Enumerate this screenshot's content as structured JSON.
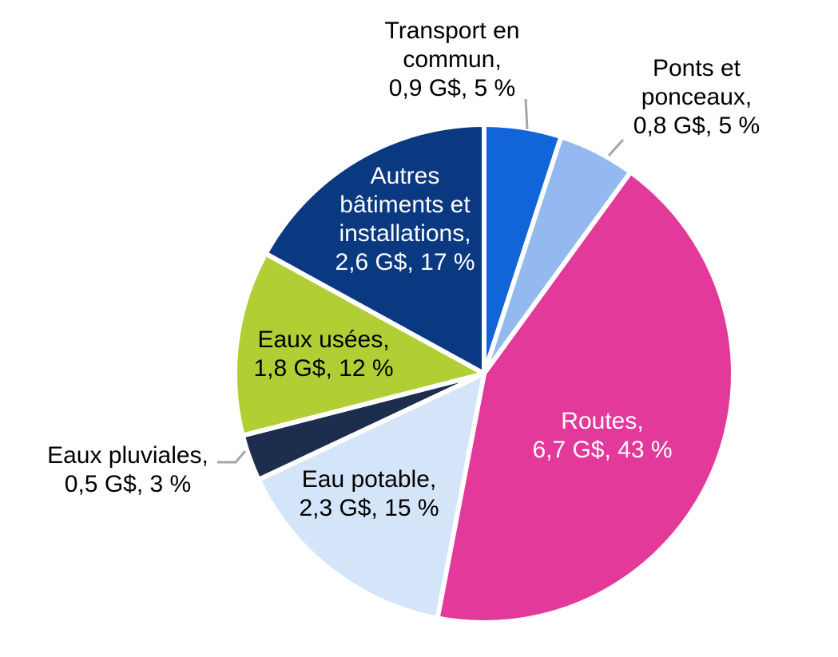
{
  "chart_data": {
    "type": "pie",
    "slices": [
      {
        "name": "Transport en commun",
        "value": 0.9,
        "percent": 5,
        "color": "#1264d9",
        "text_color": "#000000",
        "label": [
          "Transport en",
          "commun,",
          "0,9 G$, 5 %"
        ]
      },
      {
        "name": "Ponts et ponceaux",
        "value": 0.8,
        "percent": 5,
        "color": "#94b9f0",
        "text_color": "#000000",
        "label": [
          "Ponts et",
          "ponceaux,",
          "0,8 G$, 5 %"
        ]
      },
      {
        "name": "Routes",
        "value": 6.7,
        "percent": 43,
        "color": "#e2399a",
        "text_color": "#ffffff",
        "label": [
          "Routes,",
          "6,7 G$, 43 %"
        ]
      },
      {
        "name": "Eau potable",
        "value": 2.3,
        "percent": 15,
        "color": "#d4e4f9",
        "text_color": "#000000",
        "label": [
          "Eau potable,",
          "2,3 G$, 15 %"
        ]
      },
      {
        "name": "Eaux pluviales",
        "value": 0.5,
        "percent": 3,
        "color": "#1c2d4d",
        "text_color": "#000000",
        "label": [
          "Eaux pluviales,",
          "0,5 G$, 3 %"
        ]
      },
      {
        "name": "Eaux usées",
        "value": 1.8,
        "percent": 12,
        "color": "#b1cf35",
        "text_color": "#000000",
        "label": [
          "Eaux usées,",
          "1,8 G$, 12 %"
        ]
      },
      {
        "name": "Autres bâtiments et installations",
        "value": 2.6,
        "percent": 17,
        "color": "#0a3981",
        "text_color": "#ffffff",
        "label": [
          "Autres",
          "bâtiments et",
          "installations,",
          "2,6 G$, 17 %"
        ]
      }
    ],
    "start": "12 o'clock",
    "direction": "clockwise",
    "legend": "none"
  }
}
